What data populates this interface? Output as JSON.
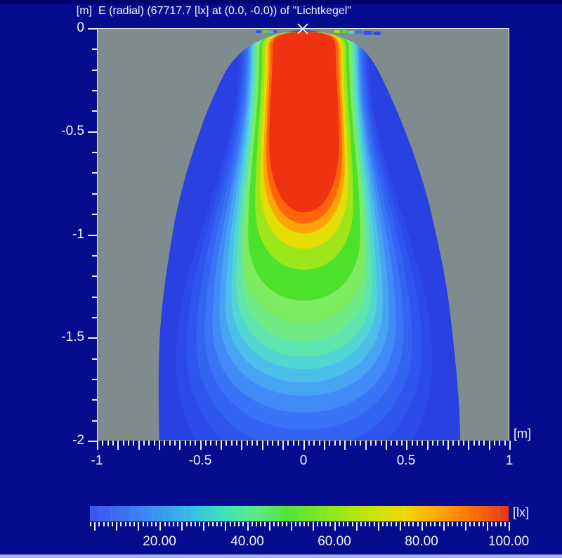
{
  "title": {
    "y_unit": "[m]",
    "text": "E (radial) (67717.7 [lx] at (0.0, -0.0)) of \"Lichtkegel\""
  },
  "x_axis": {
    "unit": "[m]",
    "min": -1,
    "max": 1,
    "minor_step": 0.025,
    "medium_step": 0.1,
    "labels": [
      {
        "text": "-1",
        "value": -1
      },
      {
        "text": "-0.5",
        "value": -0.5
      },
      {
        "text": "0",
        "value": 0
      },
      {
        "text": "0.5",
        "value": 0.5
      },
      {
        "text": "1",
        "value": 1
      }
    ]
  },
  "y_axis": {
    "unit": "[m]",
    "min": -2,
    "max": 0,
    "minor_step": 0.1,
    "major_step": 0.5,
    "labels": [
      {
        "text": "0",
        "value": 0
      },
      {
        "text": "-0.5",
        "value": -0.5
      },
      {
        "text": "-1",
        "value": -1
      },
      {
        "text": "-1.5",
        "value": -1.5
      },
      {
        "text": "-2",
        "value": -2
      }
    ]
  },
  "colorbar": {
    "unit": "[lx]",
    "min": 4,
    "max": 100,
    "minor_step": 1,
    "medium_step": 5,
    "labels": [
      {
        "text": "20.00",
        "value": 20
      },
      {
        "text": "40.00",
        "value": 40
      },
      {
        "text": "60.00",
        "value": 60
      },
      {
        "text": "80.00",
        "value": 80
      },
      {
        "text": "100.00",
        "value": 100
      }
    ],
    "gradient_stops": [
      [
        0.0,
        "#3c52ee"
      ],
      [
        0.13,
        "#3a86f2"
      ],
      [
        0.25,
        "#36c2e4"
      ],
      [
        0.32,
        "#3fe2b8"
      ],
      [
        0.4,
        "#5cea84"
      ],
      [
        0.47,
        "#52e336"
      ],
      [
        0.57,
        "#8ae81c"
      ],
      [
        0.67,
        "#c6e40c"
      ],
      [
        0.75,
        "#eed804"
      ],
      [
        0.82,
        "#ffb006"
      ],
      [
        0.9,
        "#ff7a08"
      ],
      [
        0.97,
        "#f04a10"
      ],
      [
        1.0,
        "#e93418"
      ]
    ]
  },
  "marker": {
    "symbol": "x",
    "position_m": [
      0.0,
      0.0
    ],
    "color": "#ffffff"
  },
  "colors": {
    "window_bg": "#050d8e",
    "plot_bg": "#7e8c8e",
    "plot_border": "#e2e6e8",
    "text": "#f2f4f8"
  },
  "palette": {
    "outer": "#2940e2",
    "blue1": "#2c49ea",
    "blue2": "#2f55ee",
    "blue3": "#3363f2",
    "blue4": "#3a74f6",
    "blue5": "#418af7",
    "cyan1": "#47a4f2",
    "cyan2": "#4cbeea",
    "turquoise": "#52d6d4",
    "mint": "#5fe4ae",
    "spring": "#70ea84",
    "lightgreen": "#7eec60",
    "green": "#4ce12c",
    "chartreuse": "#9ce61a",
    "yellow": "#e2dd06",
    "orange": "#ffa306",
    "orangered": "#ff6408",
    "red": "#ee3212"
  },
  "chart_data": {
    "type": "heatmap",
    "title": "E (radial) (67717.7 [lx] at (0.0, -0.0)) of \"Lichtkegel\"",
    "source_name": "Lichtkegel",
    "quantity": "E (radial)",
    "x_range_m": [
      -1,
      1
    ],
    "y_range_m": [
      -2,
      0
    ],
    "x_tick_labels": [
      -1,
      -0.5,
      0,
      0.5,
      1
    ],
    "y_tick_labels": [
      0,
      -0.5,
      -1,
      -1.5,
      -2
    ],
    "value_unit": "lx",
    "peak": {
      "value_lx": 67717.7,
      "at_m": [
        0.0,
        -0.0
      ]
    },
    "colorbar_scale": {
      "min_lx": 4,
      "max_lx": 100,
      "tick_labels_lx": [
        20,
        40,
        60,
        80,
        100
      ]
    },
    "data_extent": {
      "apex_m": [
        0,
        0
      ],
      "bottom_span_m": [
        -0.7,
        0.77
      ],
      "bottom_depth_m": -2.0
    },
    "contours": [
      {
        "level_lx": 100,
        "color": "red",
        "max_depth_m": -0.89,
        "max_halfwidth_m": 0.17
      },
      {
        "level_lx": 92,
        "color": "orangered",
        "max_depth_m": -0.95,
        "max_halfwidth_m": 0.18
      },
      {
        "level_lx": 84,
        "color": "orange",
        "max_depth_m": -0.99,
        "max_halfwidth_m": 0.2
      },
      {
        "level_lx": 74,
        "color": "yellow",
        "max_depth_m": -1.07,
        "max_halfwidth_m": 0.21
      },
      {
        "level_lx": 64,
        "color": "chartreuse",
        "max_depth_m": -1.17,
        "max_halfwidth_m": 0.24
      },
      {
        "level_lx": 54,
        "color": "green",
        "max_depth_m": -1.32,
        "max_halfwidth_m": 0.27
      },
      {
        "level_lx": 48,
        "color": "lightgreen",
        "max_depth_m": -1.43,
        "max_halfwidth_m": 0.29
      },
      {
        "level_lx": 42,
        "color": "spring",
        "max_depth_m": -1.52,
        "max_halfwidth_m": 0.31
      },
      {
        "level_lx": 36,
        "color": "mint",
        "max_depth_m": -1.59,
        "max_halfwidth_m": 0.33
      },
      {
        "level_lx": 30,
        "color": "turquoise",
        "max_depth_m": -1.66,
        "max_halfwidth_m": 0.35
      },
      {
        "level_lx": 25,
        "color": "cyan2",
        "max_depth_m": -1.72,
        "max_halfwidth_m": 0.38
      },
      {
        "level_lx": 20,
        "color": "cyan1",
        "max_depth_m": -1.79,
        "max_halfwidth_m": 0.41
      },
      {
        "level_lx": 16,
        "color": "blue5",
        "max_depth_m": -1.87,
        "max_halfwidth_m": 0.45
      },
      {
        "level_lx": 13,
        "color": "blue4",
        "max_depth_m": -1.95,
        "max_halfwidth_m": 0.48
      },
      {
        "level_lx": 10,
        "color": "blue3",
        "max_depth_m": -2.0,
        "max_halfwidth_m": 0.52
      },
      {
        "level_lx": 8,
        "color": "blue2",
        "max_depth_m": -2.0,
        "max_halfwidth_m": 0.57
      },
      {
        "level_lx": 6,
        "color": "blue1",
        "max_depth_m": -2.0,
        "max_halfwidth_m": 0.62
      },
      {
        "level_lx": 4,
        "color": "outer",
        "max_depth_m": -2.0,
        "max_halfwidth_m": 0.77
      }
    ]
  }
}
